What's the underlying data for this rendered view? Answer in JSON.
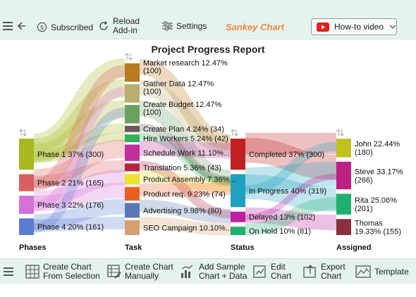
{
  "toolbar": {
    "subscribed_label": "Subscribed",
    "reload_label_1": "Reload",
    "reload_label_2": "Add-in",
    "settings_label": "Settings",
    "brand_label": "Sankey Chart",
    "howto_label": "How-to video"
  },
  "bottom_toolbar": {
    "create_selection_1": "Create Chart",
    "create_selection_2": "From Selection",
    "create_manual_1": "Create Chart",
    "create_manual_2": "Manually",
    "add_sample_1": "Add Sample",
    "add_sample_2": "Chart + Data",
    "edit_1": "Edit",
    "edit_2": "Chart",
    "export_1": "Export",
    "export_2": "Chart",
    "template_label": "Template"
  },
  "chart_data": {
    "type": "sankey",
    "title": "Project Progress Report",
    "columns": [
      "Phases",
      "Task",
      "Status",
      "Assigned"
    ],
    "phases": [
      {
        "label": "Phase 1 37% (300)",
        "value": 300,
        "color": "#a8b820"
      },
      {
        "label": "Phase 2 21% (165)",
        "value": 165,
        "color": "#d95f5f"
      },
      {
        "label": "Phase 3 22% (176)",
        "value": 176,
        "color": "#d670d6"
      },
      {
        "label": "Phase 4 20% (161)",
        "value": 161,
        "color": "#5b7bd5"
      }
    ],
    "tasks": [
      {
        "label1": "Market research 12.47%",
        "label2": "(100)",
        "value": 100,
        "color": "#b87a1e"
      },
      {
        "label1": "Gather Data 12.47%",
        "label2": "(100)",
        "value": 100,
        "color": "#b8ae6e"
      },
      {
        "label1": "Create Budget 12.47%",
        "label2": "(100)",
        "value": 100,
        "color": "#6aa060"
      },
      {
        "label1": "Create Plan 4.24% (34)",
        "label2": "",
        "value": 34,
        "color": "#6a5a5a"
      },
      {
        "label1": "Hire Workers 5.24% (42)",
        "label2": "",
        "value": 42,
        "color": "#2fb35a"
      },
      {
        "label1": "Schedule Work 11.10%...",
        "label2": "",
        "value": 89,
        "color": "#c0309a"
      },
      {
        "label1": "Translation 5.36% (43)",
        "label2": "",
        "value": 43,
        "color": "#b02840"
      },
      {
        "label1": "Product Assembly 7.36%...",
        "label2": "",
        "value": 59,
        "color": "#f0e030"
      },
      {
        "label1": "Product req. 9.23% (74)",
        "label2": "",
        "value": 74,
        "color": "#e86020"
      },
      {
        "label1": "Advertising 9.98% (80)",
        "label2": "",
        "value": 80,
        "color": "#5a78b8"
      },
      {
        "label1": "SEO Campaign 10.10%...",
        "label2": "",
        "value": 81,
        "color": "#d8a070"
      }
    ],
    "statuses": [
      {
        "label": "Completed 37% (300)",
        "value": 300,
        "color": "#c02020"
      },
      {
        "label": "In Progress 40% (319)",
        "value": 319,
        "color": "#20a0c0"
      },
      {
        "label": "Delayed 13% (102)",
        "value": 102,
        "color": "#c020a0"
      },
      {
        "label": "On Hold 10% (81)",
        "value": 81,
        "color": "#20b070"
      }
    ],
    "assigned": [
      {
        "label1": "John 22.44%",
        "label2": "(180)",
        "value": 180,
        "color": "#c0c020"
      },
      {
        "label1": "Steve 33.17%",
        "label2": "(266)",
        "value": 266,
        "color": "#c02080"
      },
      {
        "label1": "Rita 25.06%",
        "label2": "(201)",
        "value": 201,
        "color": "#20b070"
      },
      {
        "label1": "Thomas",
        "label2": "19.33% (155)",
        "value": 155,
        "color": "#8a3040"
      }
    ]
  }
}
